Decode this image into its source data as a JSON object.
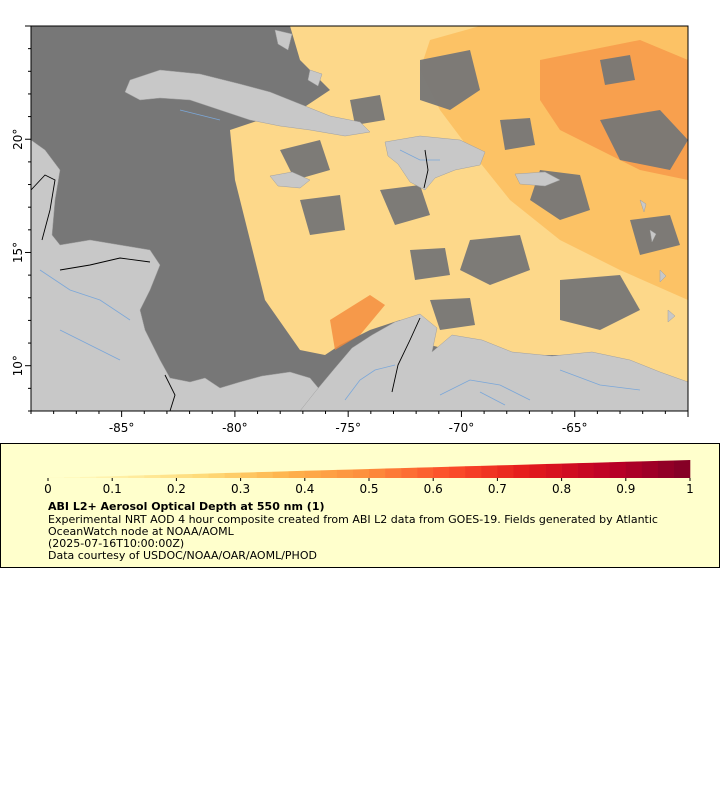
{
  "map": {
    "x_ticks": [
      {
        "lon": -85,
        "label": "-85°"
      },
      {
        "lon": -80,
        "label": "-80°"
      },
      {
        "lon": -75,
        "label": "-75°"
      },
      {
        "lon": -70,
        "label": "-70°"
      },
      {
        "lon": -65,
        "label": "-65°"
      }
    ],
    "y_ticks": [
      {
        "lat": 20,
        "label": "20°"
      },
      {
        "lat": 15,
        "label": "15°"
      },
      {
        "lat": 10,
        "label": "10°"
      }
    ],
    "lon_range": [
      -89,
      -60
    ],
    "lat_range": [
      8,
      25
    ],
    "colors": {
      "ocean_nodata": "#777777",
      "land": "#c8c8c8",
      "rivers": "#7ba7d9",
      "borders": "#000000"
    }
  },
  "legend": {
    "ticks": [
      "0",
      "0.1",
      "0.2",
      "0.3",
      "0.4",
      "0.5",
      "0.6",
      "0.7",
      "0.8",
      "0.9",
      "1"
    ],
    "colorbar_colors": [
      "#ffffcc",
      "#ffeda0",
      "#fed976",
      "#feb24c",
      "#fd8d3c",
      "#fc4e2a",
      "#e31a1c",
      "#bd0026",
      "#800026"
    ],
    "title": "ABI L2+ Aerosol Optical Depth at 550 nm (1)",
    "description": "Experimental NRT AOD 4 hour composite created from ABI L2 data from GOES-19. Fields generated by Atlantic OceanWatch node at NOAA/AOML",
    "timestamp": "(2025-07-16T10:00:00Z)",
    "credit": "Data courtesy of USDOC/NOAA/OAR/AOML/PHOD"
  }
}
